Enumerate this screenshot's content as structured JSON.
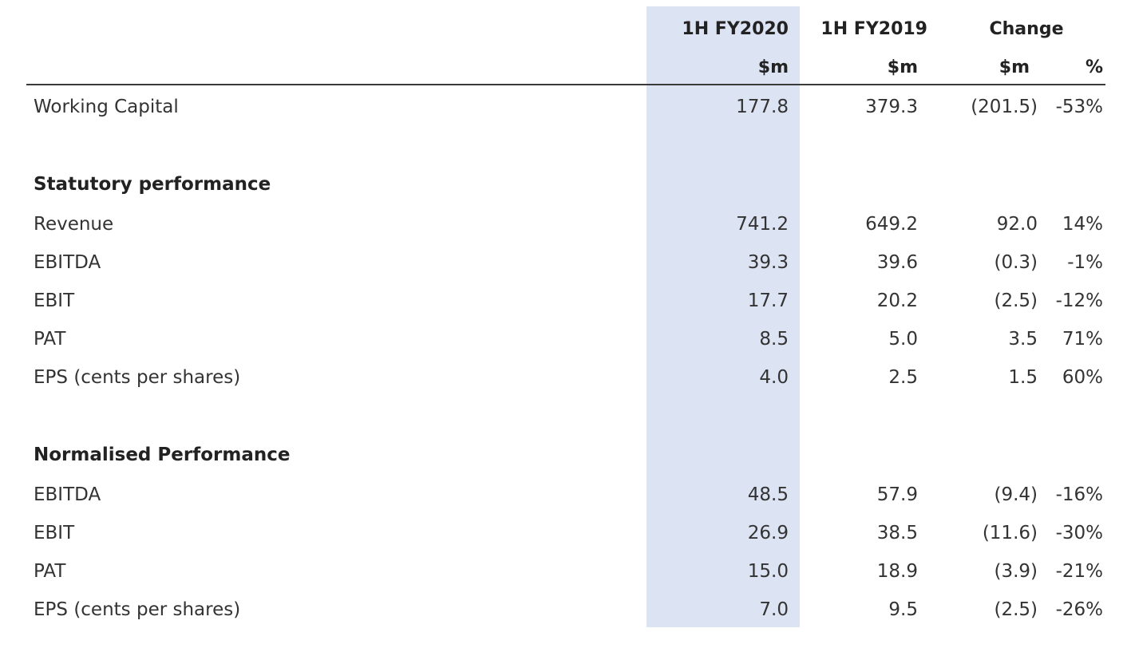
{
  "header": {
    "col_current": "1H FY2020",
    "col_prior": "1H FY2019",
    "col_change": "Change",
    "unit_current": "$m",
    "unit_prior": "$m",
    "unit_change": "$m",
    "unit_pct": "%"
  },
  "working_capital": {
    "label": "Working Capital",
    "current": "177.8",
    "prior": "379.3",
    "change": "(201.5)",
    "pct": "-53%"
  },
  "statutory": {
    "title": "Statutory performance",
    "rows": [
      {
        "label": "Revenue",
        "current": "741.2",
        "prior": "649.2",
        "change": "92.0",
        "pct": "14%"
      },
      {
        "label": "EBITDA",
        "current": "39.3",
        "prior": "39.6",
        "change": "(0.3)",
        "pct": "-1%"
      },
      {
        "label": "EBIT",
        "current": "17.7",
        "prior": "20.2",
        "change": "(2.5)",
        "pct": "-12%"
      },
      {
        "label": "PAT",
        "current": "8.5",
        "prior": "5.0",
        "change": "3.5",
        "pct": "71%"
      },
      {
        "label": "EPS (cents per shares)",
        "current": "4.0",
        "prior": "2.5",
        "change": "1.5",
        "pct": "60%"
      }
    ]
  },
  "normalised": {
    "title": "Normalised Performance",
    "rows": [
      {
        "label": "EBITDA",
        "current": "48.5",
        "prior": "57.9",
        "change": "(9.4)",
        "pct": "-16%"
      },
      {
        "label": "EBIT",
        "current": "26.9",
        "prior": "38.5",
        "change": "(11.6)",
        "pct": "-30%"
      },
      {
        "label": "PAT",
        "current": "15.0",
        "prior": "18.9",
        "change": "(3.9)",
        "pct": "-21%"
      },
      {
        "label": "EPS (cents per shares)",
        "current": "7.0",
        "prior": "9.5",
        "change": "(2.5)",
        "pct": "-26%"
      }
    ]
  },
  "colors": {
    "highlight": "#dce3f3",
    "rule": "#3a3a3a",
    "text": "#333333"
  }
}
